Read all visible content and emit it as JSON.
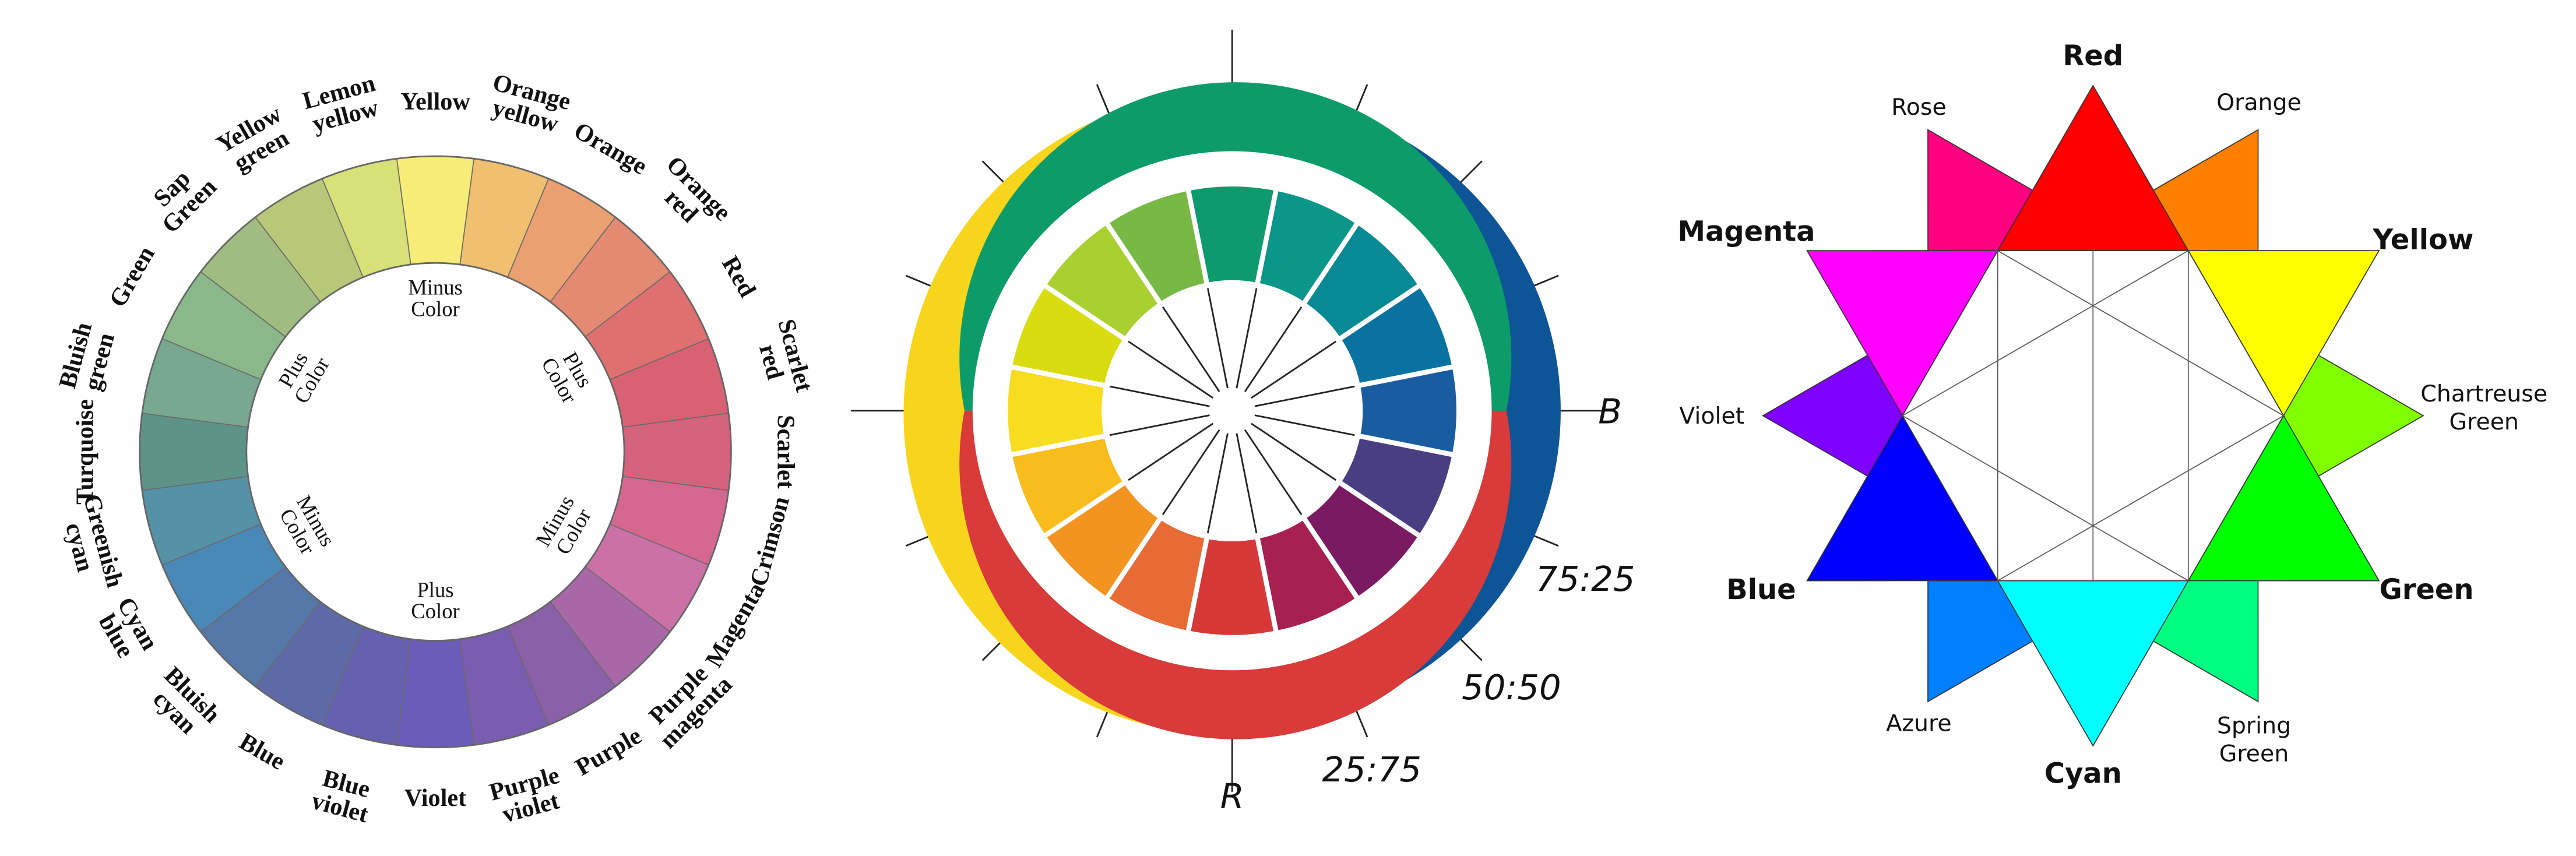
{
  "wheel1": {
    "segments": [
      {
        "label": [
          "Yellow"
        ],
        "color": "#f8ec78"
      },
      {
        "label": [
          "Orange",
          "yellow"
        ],
        "color": "#f0c070"
      },
      {
        "label": [
          "Orange"
        ],
        "color": "#eaa070"
      },
      {
        "label": [
          "Orange",
          "red"
        ],
        "color": "#e58a72"
      },
      {
        "label": [
          "Red"
        ],
        "color": "#e07070"
      },
      {
        "label": [
          "Scarlet",
          "red"
        ],
        "color": "#d96272"
      },
      {
        "label": [
          "Scarlet"
        ],
        "color": "#d6637c"
      },
      {
        "label": [
          "Crimson"
        ],
        "color": "#d66890"
      },
      {
        "label": [
          "Magenta"
        ],
        "color": "#cc70a8"
      },
      {
        "label": [
          "Purple",
          "magenta"
        ],
        "color": "#a868a8"
      },
      {
        "label": [
          "Purple"
        ],
        "color": "#8a60a8"
      },
      {
        "label": [
          "Purple",
          "violet"
        ],
        "color": "#7a5cb0"
      },
      {
        "label": [
          "Violet"
        ],
        "color": "#6a5cb8"
      },
      {
        "label": [
          "Blue",
          "violet"
        ],
        "color": "#6660b0"
      },
      {
        "label": [
          "Blue"
        ],
        "color": "#5e6aa8"
      },
      {
        "label": [
          "Bluish",
          "cyan"
        ],
        "color": "#5578a8"
      },
      {
        "label": [
          "Cyan",
          "blue"
        ],
        "color": "#4a88b8"
      },
      {
        "label": [
          "Greenish",
          "cyan"
        ],
        "color": "#5592a8"
      },
      {
        "label": [
          "Turquoise"
        ],
        "color": "#5e9488"
      },
      {
        "label": [
          "Bluish",
          "green"
        ],
        "color": "#78a890"
      },
      {
        "label": [
          "Green"
        ],
        "color": "#8ab88a"
      },
      {
        "label": [
          "Sap",
          "Green"
        ],
        "color": "#a0bc80"
      },
      {
        "label": [
          "Yellow",
          "green"
        ],
        "color": "#b8c878"
      },
      {
        "label": [
          "Lemon",
          "yellow"
        ],
        "color": "#d8e078"
      }
    ],
    "inner_labels": [
      [
        "Minus",
        "Color"
      ],
      [
        "Plus",
        "Color"
      ],
      [
        "Minus",
        "Color"
      ],
      [
        "Plus",
        "Color"
      ],
      [
        "Minus",
        "Color"
      ],
      [
        "Plus",
        "Color"
      ]
    ]
  },
  "wheel2": {
    "segment_colors": [
      "#0e9a6c",
      "#0a9688",
      "#078a94",
      "#0a72a0",
      "#1a5ca0",
      "#4a3e82",
      "#7a1a62",
      "#a82050",
      "#d63838",
      "#e86a34",
      "#f49420",
      "#f8bc1c",
      "#f7dc20",
      "#d8dc10",
      "#a8d030",
      "#78b844"
    ],
    "ring_colors": {
      "yellow": "#f7d51d",
      "blue": "#0d5596",
      "green": "#0d9b6a",
      "red": "#d93a3a"
    },
    "labels": [
      "B",
      "R",
      "75:25",
      "50:50",
      "25:75"
    ]
  },
  "wheel3": {
    "colors": [
      {
        "label": [
          "Red"
        ],
        "color": "#ff0000",
        "bold": true
      },
      {
        "label": [
          "Orange"
        ],
        "color": "#ff8000",
        "bold": false
      },
      {
        "label": [
          "Yellow"
        ],
        "color": "#ffff00",
        "bold": true
      },
      {
        "label": [
          "Chartreuse",
          "Green"
        ],
        "color": "#80ff00",
        "bold": false
      },
      {
        "label": [
          "Green"
        ],
        "color": "#00ff00",
        "bold": true
      },
      {
        "label": [
          "Spring",
          "Green"
        ],
        "color": "#00ff80",
        "bold": false
      },
      {
        "label": [
          "Cyan"
        ],
        "color": "#00ffff",
        "bold": true
      },
      {
        "label": [
          "Azure"
        ],
        "color": "#0080ff",
        "bold": false
      },
      {
        "label": [
          "Blue"
        ],
        "color": "#0000ff",
        "bold": true
      },
      {
        "label": [
          "Violet"
        ],
        "color": "#8000ff",
        "bold": false
      },
      {
        "label": [
          "Magenta"
        ],
        "color": "#ff00ff",
        "bold": true
      },
      {
        "label": [
          "Rose"
        ],
        "color": "#ff0080",
        "bold": false
      }
    ]
  }
}
